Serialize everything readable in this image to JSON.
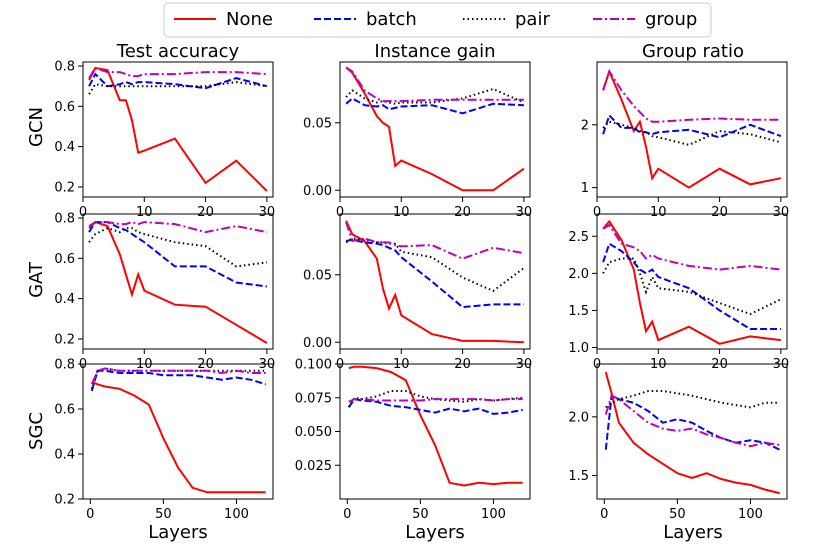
{
  "legend": [
    {
      "key": "none",
      "label": "None",
      "color": "#ff0000",
      "dash": "solid"
    },
    {
      "key": "batch",
      "label": "batch",
      "color": "#0000ff",
      "dash": "dashed"
    },
    {
      "key": "pair",
      "label": "pair",
      "color": "#000000",
      "dash": "dotted"
    },
    {
      "key": "group",
      "label": "group",
      "color": "#bf00bf",
      "dash": "dashdot"
    }
  ],
  "column_titles": [
    "Test accuracy",
    "Instance gain",
    "Group ratio"
  ],
  "row_labels": [
    "GCN",
    "GAT",
    "SGC"
  ],
  "xlabel": "Layers",
  "chart_data": [
    {
      "type": "line",
      "row": 0,
      "col": 0,
      "title": "Test accuracy",
      "ylabel": "GCN",
      "xlabel": "",
      "xlim": [
        0,
        31
      ],
      "ylim": [
        0.15,
        0.82
      ],
      "xticks": [
        0,
        10,
        20,
        30
      ],
      "yticks": [
        0.2,
        0.4,
        0.6,
        0.8
      ],
      "ytick_labels": [
        "0.2",
        "0.4",
        "0.6",
        "0.8"
      ],
      "x": [
        1,
        2,
        4,
        6,
        7,
        8,
        9,
        10,
        15,
        20,
        25,
        30
      ],
      "series": [
        {
          "name": "None",
          "values": [
            0.73,
            0.79,
            0.78,
            0.63,
            0.63,
            0.53,
            0.37,
            0.38,
            0.44,
            0.22,
            0.33,
            0.18
          ]
        },
        {
          "name": "batch",
          "values": [
            0.7,
            0.76,
            0.7,
            0.71,
            0.72,
            0.71,
            0.72,
            0.72,
            0.71,
            0.69,
            0.74,
            0.7
          ]
        },
        {
          "name": "pair",
          "values": [
            0.66,
            0.71,
            0.7,
            0.7,
            0.7,
            0.7,
            0.7,
            0.7,
            0.7,
            0.7,
            0.72,
            0.7
          ]
        },
        {
          "name": "group",
          "values": [
            0.74,
            0.79,
            0.77,
            0.77,
            0.76,
            0.75,
            0.75,
            0.76,
            0.76,
            0.77,
            0.77,
            0.76
          ]
        }
      ]
    },
    {
      "type": "line",
      "row": 0,
      "col": 1,
      "title": "Instance gain",
      "ylabel": "",
      "xlabel": "",
      "xlim": [
        0,
        31
      ],
      "ylim": [
        -0.005,
        0.095
      ],
      "xticks": [
        0,
        10,
        20,
        30
      ],
      "yticks": [
        0.0,
        0.05
      ],
      "ytick_labels": [
        "0.00",
        "0.05"
      ],
      "x": [
        1,
        2,
        4,
        6,
        7,
        8,
        9,
        10,
        15,
        20,
        25,
        30
      ],
      "series": [
        {
          "name": "None",
          "values": [
            0.091,
            0.087,
            0.072,
            0.055,
            0.05,
            0.047,
            0.018,
            0.022,
            0.012,
            0.0,
            0.0,
            0.016
          ]
        },
        {
          "name": "batch",
          "values": [
            0.064,
            0.068,
            0.063,
            0.062,
            0.063,
            0.06,
            0.061,
            0.062,
            0.063,
            0.057,
            0.064,
            0.063
          ]
        },
        {
          "name": "pair",
          "values": [
            0.069,
            0.074,
            0.068,
            0.065,
            0.066,
            0.065,
            0.064,
            0.065,
            0.065,
            0.068,
            0.075,
            0.065
          ]
        },
        {
          "name": "group",
          "values": [
            0.091,
            0.088,
            0.074,
            0.068,
            0.066,
            0.066,
            0.066,
            0.066,
            0.067,
            0.067,
            0.067,
            0.067
          ]
        }
      ]
    },
    {
      "type": "line",
      "row": 0,
      "col": 2,
      "title": "Group ratio",
      "ylabel": "",
      "xlabel": "",
      "xlim": [
        0,
        31
      ],
      "ylim": [
        0.85,
        3.0
      ],
      "xticks": [
        0,
        10,
        20,
        30
      ],
      "yticks": [
        1,
        2
      ],
      "ytick_labels": [
        "1",
        "2"
      ],
      "x": [
        1,
        2,
        4,
        6,
        7,
        8,
        9,
        10,
        15,
        20,
        25,
        30
      ],
      "series": [
        {
          "name": "None",
          "values": [
            2.55,
            2.85,
            2.4,
            1.9,
            2.05,
            1.65,
            1.15,
            1.3,
            1.0,
            1.3,
            1.05,
            1.15
          ]
        },
        {
          "name": "batch",
          "values": [
            1.85,
            2.15,
            1.95,
            1.95,
            1.88,
            1.88,
            1.85,
            1.88,
            1.92,
            1.8,
            2.0,
            1.82
          ]
        },
        {
          "name": "pair",
          "values": [
            1.95,
            2.05,
            2.0,
            1.95,
            1.9,
            1.88,
            1.82,
            1.8,
            1.68,
            1.9,
            1.85,
            1.72
          ]
        },
        {
          "name": "group",
          "values": [
            2.55,
            2.85,
            2.55,
            2.3,
            2.2,
            2.1,
            2.05,
            2.05,
            2.08,
            2.1,
            2.08,
            2.08
          ]
        }
      ]
    },
    {
      "type": "line",
      "row": 1,
      "col": 0,
      "title": "",
      "ylabel": "GAT",
      "xlabel": "",
      "xlim": [
        0,
        31
      ],
      "ylim": [
        0.15,
        0.82
      ],
      "xticks": [
        0,
        10,
        20,
        30
      ],
      "yticks": [
        0.2,
        0.4,
        0.6,
        0.8
      ],
      "ytick_labels": [
        "0.2",
        "0.4",
        "0.6",
        "0.8"
      ],
      "x": [
        1,
        2,
        4,
        6,
        7,
        8,
        9,
        10,
        15,
        20,
        25,
        30
      ],
      "series": [
        {
          "name": "None",
          "values": [
            0.75,
            0.78,
            0.76,
            0.62,
            0.52,
            0.42,
            0.52,
            0.44,
            0.37,
            0.36,
            0.27,
            0.18
          ]
        },
        {
          "name": "batch",
          "values": [
            0.73,
            0.78,
            0.78,
            0.75,
            0.74,
            0.72,
            0.7,
            0.68,
            0.56,
            0.56,
            0.48,
            0.46
          ]
        },
        {
          "name": "pair",
          "values": [
            0.68,
            0.72,
            0.75,
            0.73,
            0.75,
            0.75,
            0.73,
            0.72,
            0.68,
            0.66,
            0.56,
            0.58
          ]
        },
        {
          "name": "group",
          "values": [
            0.76,
            0.78,
            0.78,
            0.77,
            0.77,
            0.78,
            0.77,
            0.78,
            0.77,
            0.73,
            0.76,
            0.73
          ]
        }
      ]
    },
    {
      "type": "line",
      "row": 1,
      "col": 1,
      "title": "",
      "ylabel": "",
      "xlabel": "",
      "xlim": [
        0,
        31
      ],
      "ylim": [
        -0.005,
        0.095
      ],
      "xticks": [
        0,
        10,
        20,
        30
      ],
      "yticks": [
        0.0,
        0.05
      ],
      "ytick_labels": [
        "0.00",
        "0.05"
      ],
      "x": [
        1,
        2,
        4,
        6,
        7,
        8,
        9,
        10,
        15,
        20,
        25,
        30
      ],
      "series": [
        {
          "name": "None",
          "values": [
            0.09,
            0.08,
            0.075,
            0.062,
            0.04,
            0.025,
            0.035,
            0.02,
            0.006,
            0.001,
            0.001,
            0.0
          ]
        },
        {
          "name": "batch",
          "values": [
            0.075,
            0.076,
            0.074,
            0.073,
            0.072,
            0.07,
            0.068,
            0.063,
            0.045,
            0.026,
            0.028,
            0.028
          ]
        },
        {
          "name": "pair",
          "values": [
            0.074,
            0.077,
            0.076,
            0.074,
            0.074,
            0.073,
            0.073,
            0.067,
            0.063,
            0.048,
            0.038,
            0.055
          ]
        },
        {
          "name": "group",
          "values": [
            0.089,
            0.075,
            0.077,
            0.074,
            0.074,
            0.074,
            0.072,
            0.071,
            0.072,
            0.062,
            0.07,
            0.066
          ]
        }
      ]
    },
    {
      "type": "line",
      "row": 1,
      "col": 2,
      "title": "",
      "ylabel": "",
      "xlabel": "",
      "xlim": [
        0,
        31
      ],
      "ylim": [
        0.98,
        2.8
      ],
      "xticks": [
        0,
        10,
        20,
        30
      ],
      "yticks": [
        1.0,
        1.5,
        2.0,
        2.5
      ],
      "ytick_labels": [
        "1.0",
        "1.5",
        "2.0",
        "2.5"
      ],
      "x": [
        1,
        2,
        4,
        6,
        7,
        8,
        9,
        10,
        15,
        20,
        25,
        30
      ],
      "series": [
        {
          "name": "None",
          "values": [
            2.6,
            2.7,
            2.45,
            2.05,
            1.6,
            1.22,
            1.35,
            1.1,
            1.28,
            1.05,
            1.15,
            1.1
          ]
        },
        {
          "name": "batch",
          "values": [
            2.15,
            2.4,
            2.3,
            2.15,
            2.05,
            2.0,
            2.05,
            1.95,
            1.8,
            1.5,
            1.25,
            1.25
          ]
        },
        {
          "name": "pair",
          "values": [
            2.0,
            2.15,
            2.2,
            2.2,
            2.0,
            1.75,
            1.95,
            1.8,
            1.75,
            1.6,
            1.45,
            1.65
          ]
        },
        {
          "name": "group",
          "values": [
            2.6,
            2.65,
            2.4,
            2.35,
            2.3,
            2.2,
            2.25,
            2.2,
            2.1,
            2.05,
            2.1,
            2.05
          ]
        }
      ]
    },
    {
      "type": "line",
      "row": 2,
      "col": 0,
      "title": "",
      "ylabel": "SGC",
      "xlabel": "Layers",
      "xlim": [
        -5,
        125
      ],
      "ylim": [
        0.2,
        0.8
      ],
      "xticks": [
        0,
        50,
        100
      ],
      "yticks": [
        0.2,
        0.4,
        0.6,
        0.8
      ],
      "ytick_labels": [
        "0.2",
        "0.4",
        "0.6",
        "0.8"
      ],
      "x": [
        1,
        5,
        10,
        20,
        30,
        40,
        50,
        60,
        70,
        80,
        90,
        100,
        110,
        120
      ],
      "series": [
        {
          "name": "None",
          "values": [
            0.72,
            0.71,
            0.7,
            0.69,
            0.66,
            0.62,
            0.47,
            0.34,
            0.25,
            0.23,
            0.23,
            0.23,
            0.23,
            0.23
          ]
        },
        {
          "name": "batch",
          "values": [
            0.68,
            0.77,
            0.77,
            0.76,
            0.76,
            0.76,
            0.75,
            0.75,
            0.75,
            0.74,
            0.73,
            0.74,
            0.73,
            0.71
          ]
        },
        {
          "name": "pair",
          "values": [
            0.69,
            0.77,
            0.78,
            0.77,
            0.77,
            0.77,
            0.77,
            0.77,
            0.77,
            0.77,
            0.77,
            0.77,
            0.77,
            0.77
          ]
        },
        {
          "name": "group",
          "values": [
            0.71,
            0.77,
            0.78,
            0.77,
            0.77,
            0.77,
            0.77,
            0.77,
            0.77,
            0.77,
            0.76,
            0.77,
            0.76,
            0.76
          ]
        }
      ]
    },
    {
      "type": "line",
      "row": 2,
      "col": 1,
      "title": "",
      "ylabel": "",
      "xlabel": "Layers",
      "xlim": [
        -5,
        125
      ],
      "ylim": [
        0.0,
        0.1
      ],
      "xticks": [
        0,
        50,
        100
      ],
      "yticks": [
        0.025,
        0.05,
        0.075,
        0.1
      ],
      "ytick_labels": [
        "0.025",
        "0.050",
        "0.075",
        "0.100"
      ],
      "x": [
        1,
        5,
        10,
        20,
        30,
        40,
        50,
        60,
        70,
        80,
        90,
        100,
        110,
        120
      ],
      "series": [
        {
          "name": "None",
          "values": [
            0.097,
            0.098,
            0.098,
            0.097,
            0.094,
            0.088,
            0.062,
            0.04,
            0.012,
            0.01,
            0.012,
            0.011,
            0.012,
            0.012
          ]
        },
        {
          "name": "batch",
          "values": [
            0.068,
            0.074,
            0.073,
            0.072,
            0.069,
            0.068,
            0.066,
            0.064,
            0.067,
            0.065,
            0.067,
            0.063,
            0.064,
            0.066
          ]
        },
        {
          "name": "pair",
          "values": [
            0.068,
            0.075,
            0.074,
            0.076,
            0.08,
            0.08,
            0.076,
            0.074,
            0.073,
            0.072,
            0.074,
            0.073,
            0.074,
            0.075
          ]
        },
        {
          "name": "group",
          "values": [
            0.072,
            0.074,
            0.074,
            0.073,
            0.073,
            0.073,
            0.073,
            0.074,
            0.074,
            0.074,
            0.074,
            0.073,
            0.074,
            0.074
          ]
        }
      ]
    },
    {
      "type": "line",
      "row": 2,
      "col": 2,
      "title": "",
      "ylabel": "",
      "xlabel": "Layers",
      "xlim": [
        -5,
        125
      ],
      "ylim": [
        1.3,
        2.45
      ],
      "xticks": [
        0,
        50,
        100
      ],
      "yticks": [
        1.5,
        2.0
      ],
      "ytick_labels": [
        "1.5",
        "2.0"
      ],
      "x": [
        1,
        5,
        10,
        20,
        30,
        40,
        50,
        60,
        70,
        80,
        90,
        100,
        110,
        120
      ],
      "series": [
        {
          "name": "None",
          "values": [
            2.38,
            2.2,
            1.95,
            1.78,
            1.68,
            1.6,
            1.52,
            1.48,
            1.52,
            1.47,
            1.44,
            1.42,
            1.38,
            1.35
          ]
        },
        {
          "name": "batch",
          "values": [
            1.72,
            2.18,
            2.15,
            2.12,
            2.05,
            1.95,
            1.98,
            1.95,
            1.88,
            1.82,
            1.78,
            1.8,
            1.78,
            1.72
          ]
        },
        {
          "name": "pair",
          "values": [
            2.08,
            2.12,
            2.15,
            2.18,
            2.22,
            2.22,
            2.2,
            2.18,
            2.15,
            2.12,
            2.1,
            2.08,
            2.12,
            2.12
          ]
        },
        {
          "name": "group",
          "values": [
            2.02,
            2.18,
            2.15,
            2.05,
            1.95,
            1.9,
            1.88,
            1.9,
            1.85,
            1.82,
            1.78,
            1.75,
            1.78,
            1.76
          ]
        }
      ]
    }
  ]
}
